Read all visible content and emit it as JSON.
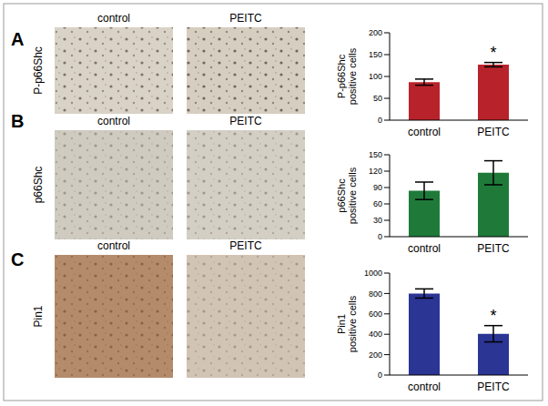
{
  "figure": {
    "panels": [
      {
        "letter": "A",
        "image_label": "P-p66Shc",
        "image_titles": [
          "control",
          "PEITC"
        ]
      },
      {
        "letter": "B",
        "image_label": "p66Shc",
        "image_titles": [
          "control",
          "PEITC"
        ]
      },
      {
        "letter": "C",
        "image_label": "Pin1",
        "image_titles": [
          "control",
          "PEITC"
        ]
      }
    ]
  },
  "chart_data": [
    {
      "type": "bar",
      "y_label": "P-p66Shc positive cells",
      "categories": [
        "control",
        "PEITC"
      ],
      "values": [
        87,
        127
      ],
      "errors": [
        7,
        5
      ],
      "color": "#b8232b",
      "ylim": [
        0,
        200
      ],
      "yticks": [
        0,
        50,
        100,
        150,
        200
      ],
      "grid": false,
      "annotations": [
        {
          "category": "PEITC",
          "text": "*"
        }
      ]
    },
    {
      "type": "bar",
      "y_label": "p66Shc positive cells",
      "categories": [
        "control",
        "PEITC"
      ],
      "values": [
        84,
        117
      ],
      "errors": [
        16,
        22
      ],
      "color": "#1f7a3a",
      "ylim": [
        0,
        150
      ],
      "yticks": [
        0,
        30,
        60,
        90,
        120,
        150
      ],
      "grid": false,
      "annotations": []
    },
    {
      "type": "bar",
      "y_label": "Pin1 positive cells",
      "categories": [
        "control",
        "PEITC"
      ],
      "values": [
        800,
        405
      ],
      "errors": [
        45,
        80
      ],
      "color": "#2a3594",
      "ylim": [
        0,
        1000
      ],
      "yticks": [
        0,
        200,
        400,
        600,
        800,
        1000
      ],
      "grid": false,
      "annotations": [
        {
          "category": "PEITC",
          "text": "*"
        }
      ]
    }
  ]
}
